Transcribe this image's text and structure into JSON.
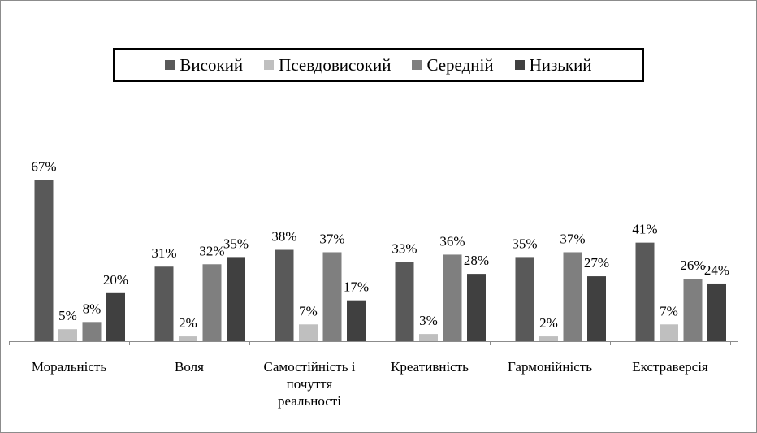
{
  "chart_data": {
    "type": "bar",
    "title": "",
    "xlabel": "",
    "ylabel": "",
    "ylim": [
      0,
      70
    ],
    "grid": false,
    "legend_position": "top",
    "categories": [
      "Моральність",
      "Воля",
      "Самостійність і почуття реальності",
      "Креативність",
      "Гармонійність",
      "Екстраверсія"
    ],
    "category_lines": [
      [
        "Моральність"
      ],
      [
        "Воля"
      ],
      [
        "Самостійність і",
        "почуття",
        "реальності"
      ],
      [
        "Креативність"
      ],
      [
        "Гармонійність"
      ],
      [
        "Екстраверсія"
      ]
    ],
    "series": [
      {
        "name": "Високий",
        "color": "#595959",
        "values": [
          67,
          31,
          38,
          33,
          35,
          41
        ],
        "labels": [
          "67%",
          "31%",
          "38%",
          "33%",
          "35%",
          "41%"
        ]
      },
      {
        "name": "Псевдовисокий",
        "color": "#bfbfbf",
        "values": [
          5,
          2,
          7,
          3,
          2,
          7
        ],
        "labels": [
          "5%",
          "2%",
          "7%",
          "3%",
          "2%",
          "7%"
        ]
      },
      {
        "name": "Середній",
        "color": "#7f7f7f",
        "values": [
          8,
          32,
          37,
          36,
          37,
          26
        ],
        "labels": [
          "8%",
          "32%",
          "37%",
          "36%",
          "37%",
          "26%"
        ]
      },
      {
        "name": "Низький",
        "color": "#404040",
        "values": [
          20,
          35,
          17,
          28,
          27,
          24
        ],
        "labels": [
          "20%",
          "35%",
          "17%",
          "28%",
          "27%",
          "24%"
        ]
      }
    ]
  }
}
